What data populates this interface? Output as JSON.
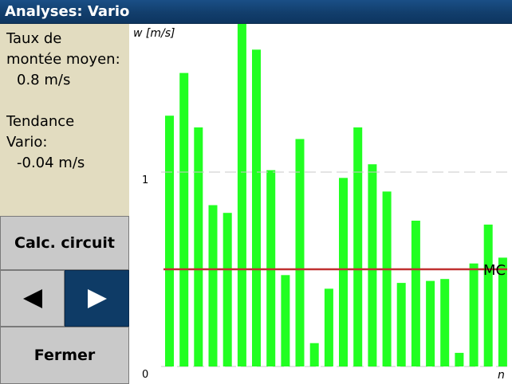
{
  "window": {
    "title": "Analyses: Vario"
  },
  "info": {
    "climb_label_line1": "Taux de",
    "climb_label_line2": "montée moyen:",
    "climb_value": "0.8 m/s",
    "trend_label_line1": "Tendance",
    "trend_label_line2": "Vario:",
    "trend_value": "-0.04 m/s"
  },
  "buttons": {
    "calc_circuit": "Calc. circuit",
    "close": "Fermer",
    "prev_icon": "triangle-left-icon",
    "next_icon": "triangle-right-icon"
  },
  "chart_data": {
    "type": "bar",
    "ylabel": "w [m/s]",
    "xlabel": "n",
    "yticks": [
      "1",
      "0"
    ],
    "ylim": [
      0,
      1.9
    ],
    "values": [
      1.29,
      1.51,
      1.23,
      0.83,
      0.79,
      1.77,
      1.63,
      1.01,
      0.47,
      1.17,
      0.12,
      0.4,
      0.97,
      1.23,
      1.04,
      0.9,
      0.43,
      0.75,
      0.44,
      0.45,
      0.07,
      0.53,
      0.73,
      0.56
    ],
    "reference_lines": [
      {
        "label": "",
        "value": 1.0,
        "style": "dashed",
        "color": "#c8c8c8"
      },
      {
        "label": "MC",
        "value": 0.5,
        "style": "solid",
        "color": "#c03030"
      }
    ],
    "bar_color": "#22ff22"
  }
}
